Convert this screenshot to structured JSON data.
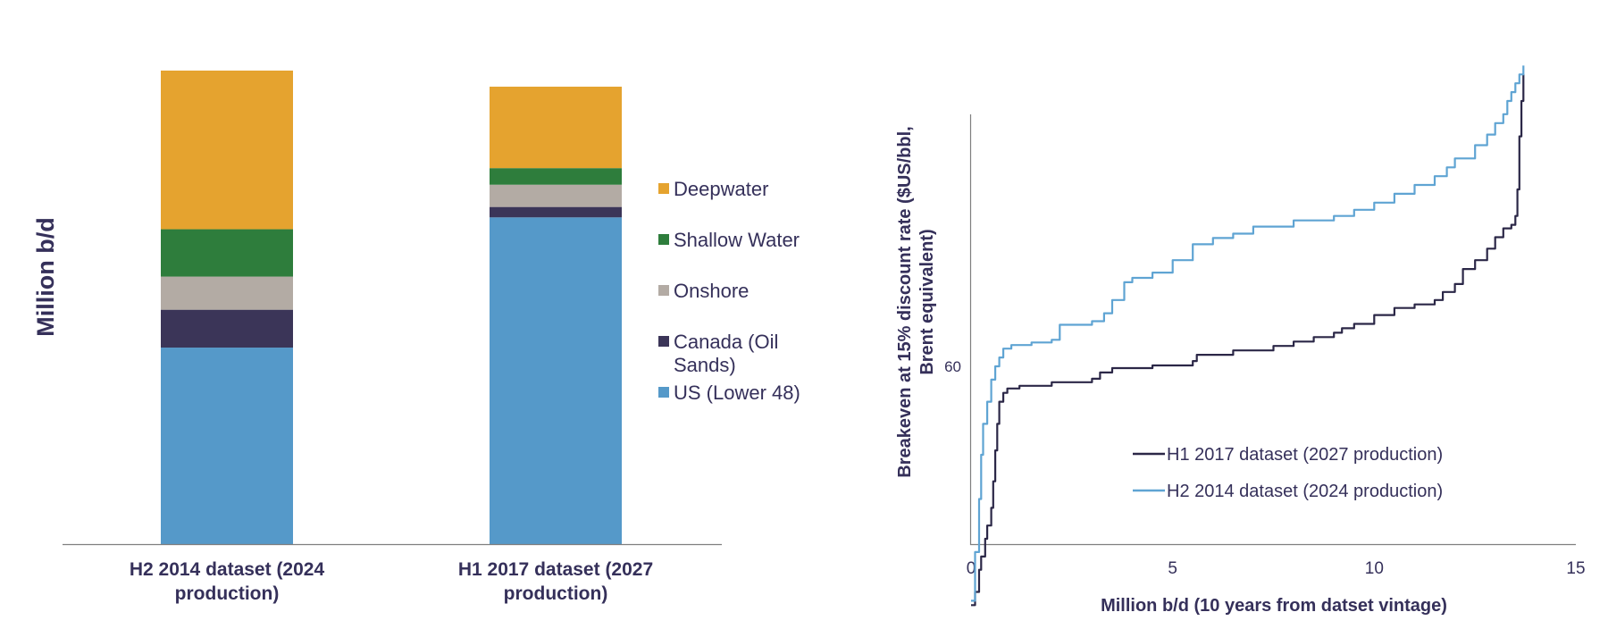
{
  "colors": {
    "deepwater": "#e5a32f",
    "shallow_water": "#2e7d3c",
    "onshore": "#b3aba4",
    "canada_oil_sands": "#3b3558",
    "us_lower_48": "#5599c9",
    "h1_2017_line": "#2b2747",
    "h2_2014_line": "#5fa4d3",
    "text": "#35305a",
    "axis": "#7f7f7f"
  },
  "chart_data": [
    {
      "type": "bar",
      "stacked": true,
      "ylabel": "Million b/d",
      "xlabel": "",
      "categories": [
        "H2 2014 dataset (2024 production)",
        "H1 2017 dataset (2027 production)"
      ],
      "category_lines": [
        [
          "H2 2014 dataset (2024",
          "production)"
        ],
        [
          "H1 2017 dataset (2027",
          "production)"
        ]
      ],
      "ylim": [
        0,
        1.0
      ],
      "y_ticks_shown": false,
      "series": [
        {
          "name": "US (Lower 48)",
          "legend_lines": [
            "US (Lower 48)"
          ],
          "color_key": "us_lower_48",
          "values": [
            0.415,
            0.69
          ]
        },
        {
          "name": "Canada (Oil Sands)",
          "legend_lines": [
            "Canada (Oil",
            "Sands)"
          ],
          "color_key": "canada_oil_sands",
          "values": [
            0.08,
            0.022
          ]
        },
        {
          "name": "Onshore",
          "legend_lines": [
            "Onshore"
          ],
          "color_key": "onshore",
          "values": [
            0.07,
            0.047
          ]
        },
        {
          "name": "Shallow Water",
          "legend_lines": [
            "Shallow Water"
          ],
          "color_key": "shallow_water",
          "values": [
            0.1,
            0.035
          ]
        },
        {
          "name": "Deepwater",
          "legend_lines": [
            "Deepwater"
          ],
          "color_key": "deepwater",
          "values": [
            0.335,
            0.172
          ]
        }
      ],
      "legend_order": [
        "Deepwater",
        "Shallow Water",
        "Onshore",
        "Canada (Oil Sands)",
        "US (Lower 48)"
      ],
      "legend_position": "right",
      "grid": false
    },
    {
      "type": "line",
      "step": true,
      "ylabel": "Breakeven at 15% discount rate ($US/bbl, Brent equivalent)",
      "ylabel_lines": [
        "Breakeven at 15% discount rate ($US/bbl,",
        "Brent equivalent)"
      ],
      "xlabel": "Million b/d (10 years from datset vintage)",
      "xlim": [
        0,
        15
      ],
      "x_ticks": [
        0,
        5,
        10,
        15
      ],
      "ylim": [
        28,
        95
      ],
      "y_ticks": [
        60
      ],
      "legend_position": "lower-right",
      "grid": false,
      "series": [
        {
          "name": "H1 2017 dataset (2027 production)",
          "color_key": "h1_2017_line",
          "x": [
            0.0,
            0.1,
            0.2,
            0.25,
            0.35,
            0.4,
            0.5,
            0.55,
            0.6,
            0.65,
            0.7,
            0.8,
            0.9,
            1.2,
            2.0,
            3.0,
            3.2,
            3.5,
            4.5,
            5.5,
            5.6,
            6.5,
            7.5,
            8.0,
            8.5,
            9.0,
            9.2,
            9.5,
            10.0,
            10.5,
            11.0,
            11.5,
            11.7,
            12.0,
            12.2,
            12.5,
            12.8,
            13.0,
            13.2,
            13.4,
            13.5,
            13.55,
            13.6,
            13.65,
            13.7
          ],
          "y": [
            33,
            34.5,
            37,
            38.5,
            40.5,
            42,
            44,
            47,
            50.5,
            53.5,
            56,
            57,
            57.5,
            57.8,
            58.2,
            58.6,
            59.3,
            59.8,
            60.1,
            60.6,
            61.3,
            61.8,
            62.3,
            62.8,
            63.3,
            63.8,
            64.3,
            64.8,
            65.8,
            66.6,
            67,
            67.5,
            68.4,
            69.3,
            71,
            72,
            73.3,
            74.6,
            75.6,
            76,
            77,
            80,
            86,
            90,
            93
          ]
        },
        {
          "name": "H2 2014 dataset (2024 production)",
          "color_key": "h2_2014_line",
          "x": [
            0.0,
            0.1,
            0.2,
            0.25,
            0.3,
            0.4,
            0.5,
            0.6,
            0.7,
            0.8,
            1.0,
            1.5,
            2.0,
            2.2,
            3.0,
            3.3,
            3.5,
            3.8,
            4.0,
            4.5,
            5.0,
            5.5,
            6.0,
            6.5,
            7.0,
            8.0,
            9.0,
            9.5,
            10.0,
            10.5,
            11.0,
            11.5,
            11.8,
            12.0,
            12.5,
            12.8,
            13.0,
            13.2,
            13.3,
            13.4,
            13.5,
            13.6,
            13.7
          ],
          "y": [
            33.5,
            39,
            45,
            50,
            53.5,
            56,
            58.5,
            60,
            61,
            62,
            62.4,
            62.7,
            63,
            64.7,
            65.1,
            66,
            67.5,
            69.5,
            70,
            70.6,
            72,
            73.8,
            74.5,
            75,
            75.8,
            76.5,
            77,
            77.7,
            78.5,
            79.5,
            80.5,
            81.5,
            82.5,
            83.5,
            85,
            86.2,
            87.5,
            88.5,
            90,
            91,
            92,
            93,
            94
          ]
        }
      ]
    }
  ]
}
